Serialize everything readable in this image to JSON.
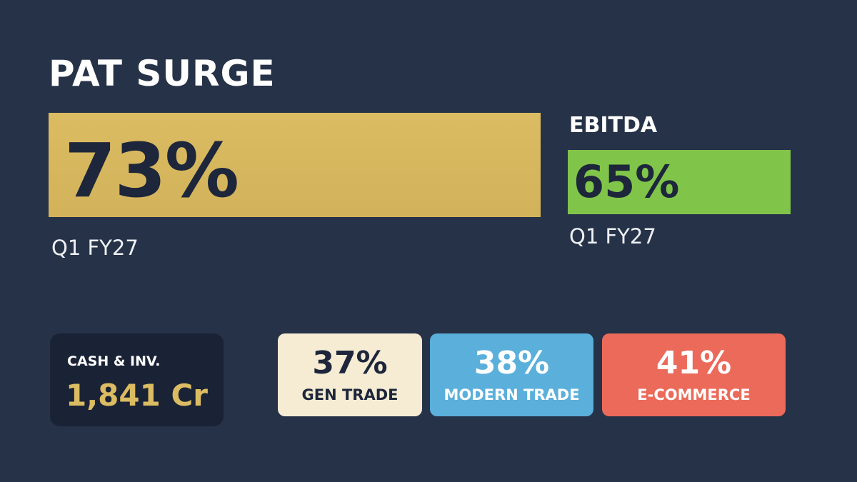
{
  "headline": {
    "title": "PAT SURGE",
    "value": "73%",
    "period": "Q1 FY27"
  },
  "ebitda": {
    "title": "EBITDA",
    "value": "65%",
    "period": "Q1 FY27"
  },
  "cash": {
    "label": "CASH & INV.",
    "value": "1,841 Cr"
  },
  "channels": [
    {
      "value": "37%",
      "label": "GEN TRADE"
    },
    {
      "value": "38%",
      "label": "MODERN TRADE"
    },
    {
      "value": "41%",
      "label": "E-COMMERCE"
    }
  ]
}
